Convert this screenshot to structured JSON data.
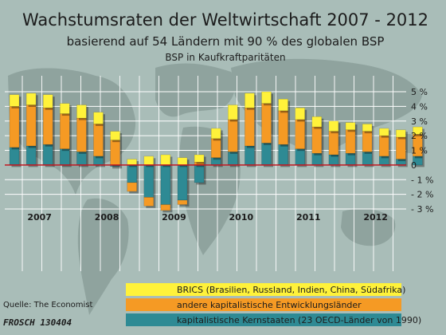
{
  "chart_data": {
    "type": "bar",
    "stacked": true,
    "title": "Wachstumsraten der Weltwirtschaft 2007 - 2012",
    "subtitle": "basierend auf 54 Ländern mit 90 % des globalen BSP",
    "subtitle2": "BSP in Kaufkraftparitäten",
    "y_unit": "%",
    "ylim": [
      -3,
      5
    ],
    "yticks": [
      5,
      4,
      3,
      2,
      1,
      0,
      -1,
      -2,
      -3
    ],
    "ytick_labels": [
      "5 %",
      "4 %",
      "3 %",
      "2 %",
      "1 %",
      "0",
      "- 1 %",
      "- 2 %",
      "- 3 %"
    ],
    "year_labels": [
      "2007",
      "2008",
      "2009",
      "2010",
      "2011",
      "2012"
    ],
    "bars_per_year": 4,
    "series": [
      {
        "name": "kapitalistische Kernstaaten (23 OECD-Länder von 1990)",
        "color": "#2e8a94",
        "values": [
          1.2,
          1.3,
          1.4,
          1.1,
          0.9,
          0.6,
          -0.1,
          -1.2,
          -2.2,
          -2.7,
          -2.4,
          -1.2,
          0.5,
          0.9,
          1.3,
          1.5,
          1.4,
          1.1,
          0.8,
          0.7,
          0.8,
          0.9,
          0.6,
          0.4,
          0.6
        ]
      },
      {
        "name": "andere kapitalistische Entwicklungsländer",
        "color": "#f59a24",
        "values": [
          2.8,
          2.8,
          2.5,
          2.4,
          2.3,
          2.2,
          1.7,
          -0.6,
          -0.6,
          -0.4,
          -0.3,
          0.2,
          1.3,
          2.2,
          2.6,
          2.7,
          2.3,
          2.0,
          1.8,
          1.6,
          1.6,
          1.4,
          1.4,
          1.5,
          1.5
        ]
      },
      {
        "name": "BRICS (Brasilien, Russland, Indien, China, Südafrika)",
        "color": "#fff23a",
        "values": [
          0.8,
          0.8,
          0.9,
          0.7,
          0.9,
          0.8,
          0.6,
          0.4,
          0.6,
          0.7,
          0.5,
          0.5,
          0.7,
          1.0,
          1.0,
          0.8,
          0.8,
          0.8,
          0.7,
          0.7,
          0.5,
          0.5,
          0.5,
          0.5,
          0.5
        ]
      }
    ],
    "legend_position": "bottom-right",
    "grid": true
  },
  "source_label": "Quelle: The Economist",
  "signature": "FROSCH 130404"
}
